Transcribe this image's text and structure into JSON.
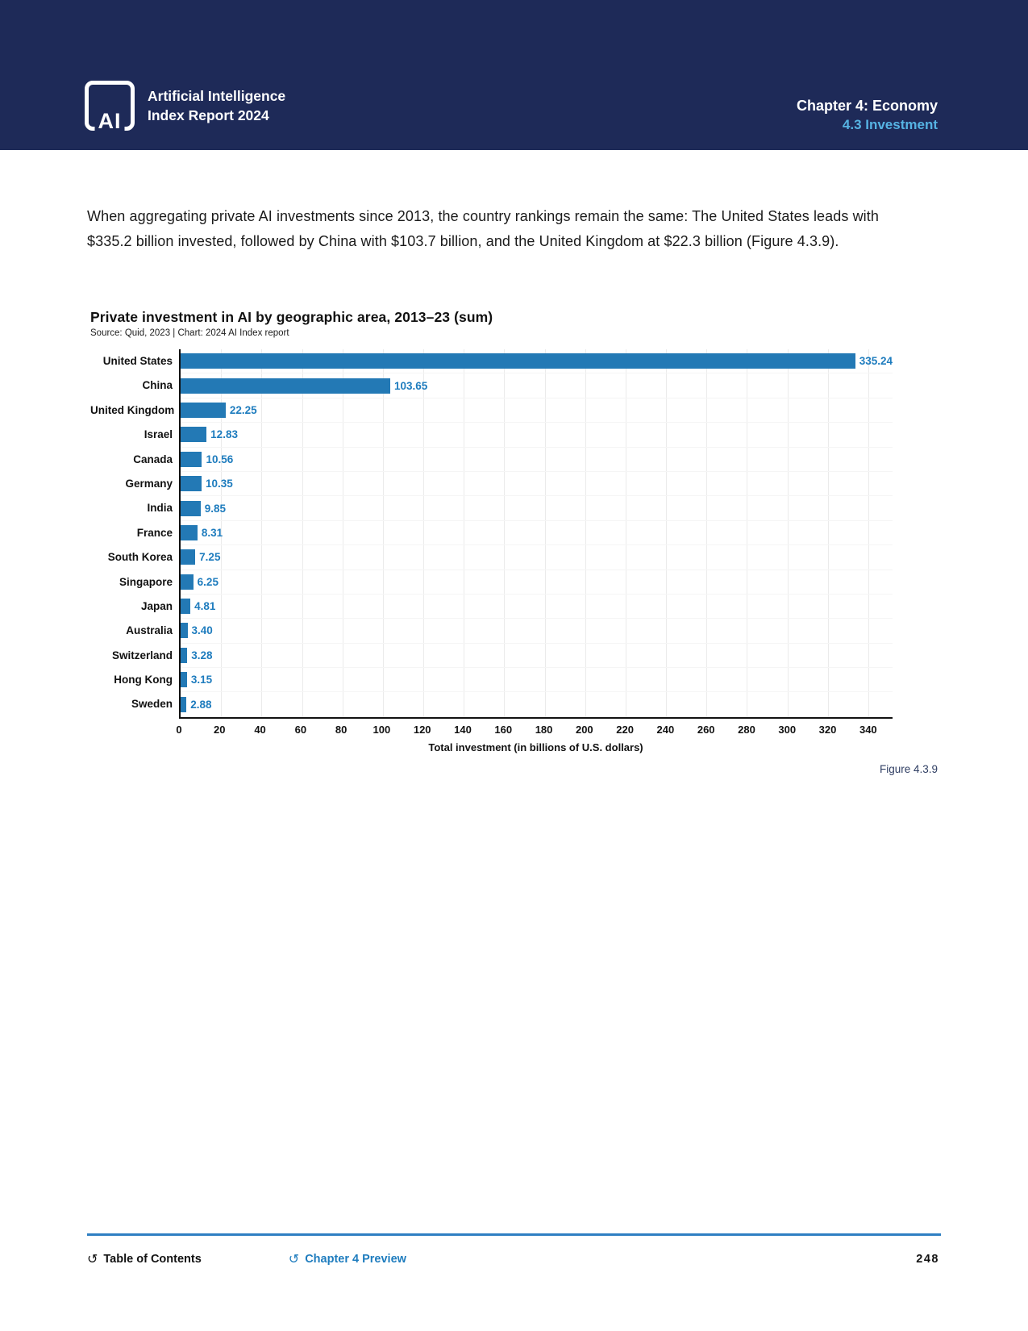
{
  "header": {
    "logo_text": "AI",
    "brand_line1": "Artificial Intelligence",
    "brand_line2": "Index Report 2024",
    "chapter": "Chapter 4: Economy",
    "section": "4.3 Investment"
  },
  "body": {
    "paragraph": "When aggregating private AI investments since 2013, the country rankings remain the same: The United States leads with $335.2 billion invested, followed by China with $103.7 billion, and the United Kingdom at $22.3 billion (Figure 4.3.9)."
  },
  "chart_data": {
    "type": "bar",
    "orientation": "horizontal",
    "title": "Private investment in AI by geographic area, 2013–23 (sum)",
    "source": "Source: Quid, 2023 | Chart: 2024 AI Index report",
    "categories": [
      "United States",
      "China",
      "United Kingdom",
      "Israel",
      "Canada",
      "Germany",
      "India",
      "France",
      "South Korea",
      "Singapore",
      "Japan",
      "Australia",
      "Switzerland",
      "Hong Kong",
      "Sweden"
    ],
    "values": [
      335.24,
      103.65,
      22.25,
      12.83,
      10.56,
      10.35,
      9.85,
      8.31,
      7.25,
      6.25,
      4.81,
      3.4,
      3.28,
      3.15,
      2.88
    ],
    "value_labels": [
      "335.24",
      "103.65",
      "22.25",
      "12.83",
      "10.56",
      "10.35",
      "9.85",
      "8.31",
      "7.25",
      "6.25",
      "4.81",
      "3.40",
      "3.28",
      "3.15",
      "2.88"
    ],
    "xlabel": "Total investment (in billions of U.S. dollars)",
    "xticks": [
      0,
      20,
      40,
      60,
      80,
      100,
      120,
      140,
      160,
      180,
      200,
      220,
      240,
      260,
      280,
      300,
      320,
      340
    ],
    "xlim": [
      0,
      352
    ],
    "grid": true,
    "legend": false,
    "bar_color": "#2379b5",
    "value_color": "#1e7cbe"
  },
  "figure_caption": "Figure 4.3.9",
  "footer": {
    "toc_label": "Table of Contents",
    "preview_label": "Chapter 4 Preview",
    "return_icon": "↺",
    "page_number": "248"
  },
  "colors": {
    "header_bg": "#1e2a58",
    "accent_light_blue": "#56b3e3",
    "bar_blue": "#2379b5",
    "footer_rule_blue": "#2e7fc2"
  }
}
